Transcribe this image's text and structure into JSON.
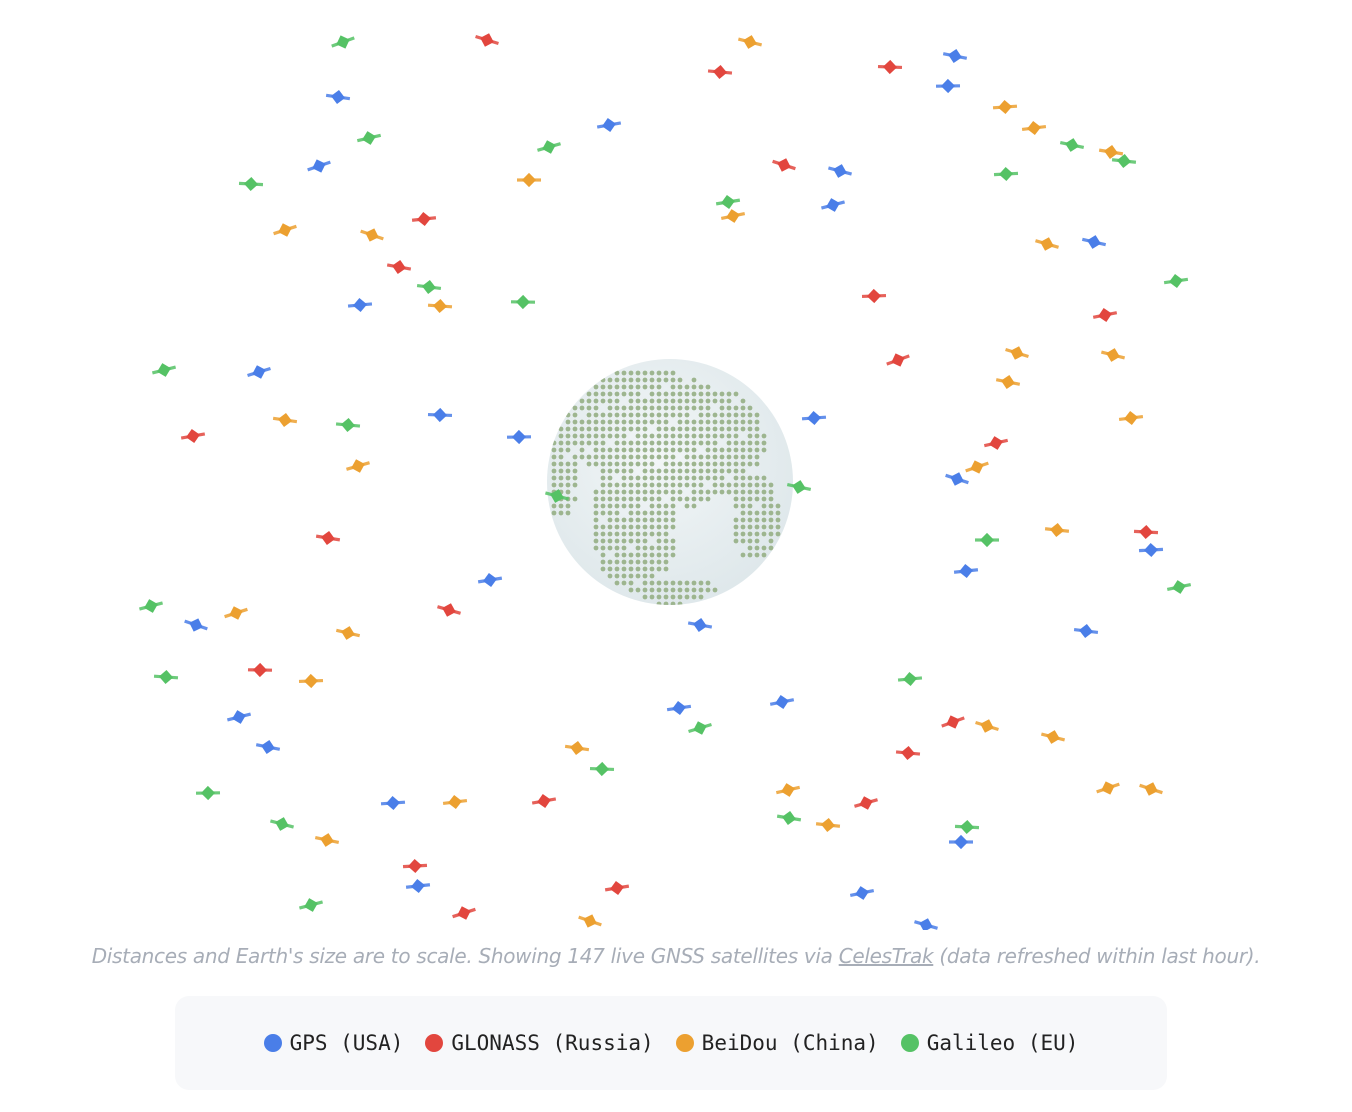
{
  "colors": {
    "gps": "#4a7ee8",
    "glonass": "#e2463e",
    "beidou": "#eca030",
    "galileo": "#55c265",
    "earth_land": "#9db58f",
    "earth_ocean": "#e4ecef"
  },
  "caption": {
    "before": "Distances and Earth's size are to scale. Showing 147 live GNSS satellites via ",
    "link": "CelesTrak",
    "after": " (data refreshed within last hour)."
  },
  "legend": [
    {
      "label": "GPS (USA)",
      "color": "#4a7ee8"
    },
    {
      "label": "GLONASS (Russia)",
      "color": "#e2463e"
    },
    {
      "label": "BeiDou (China)",
      "color": "#eca030"
    },
    {
      "label": "Galileo (EU)",
      "color": "#55c265"
    }
  ],
  "satellite_count": 147
}
